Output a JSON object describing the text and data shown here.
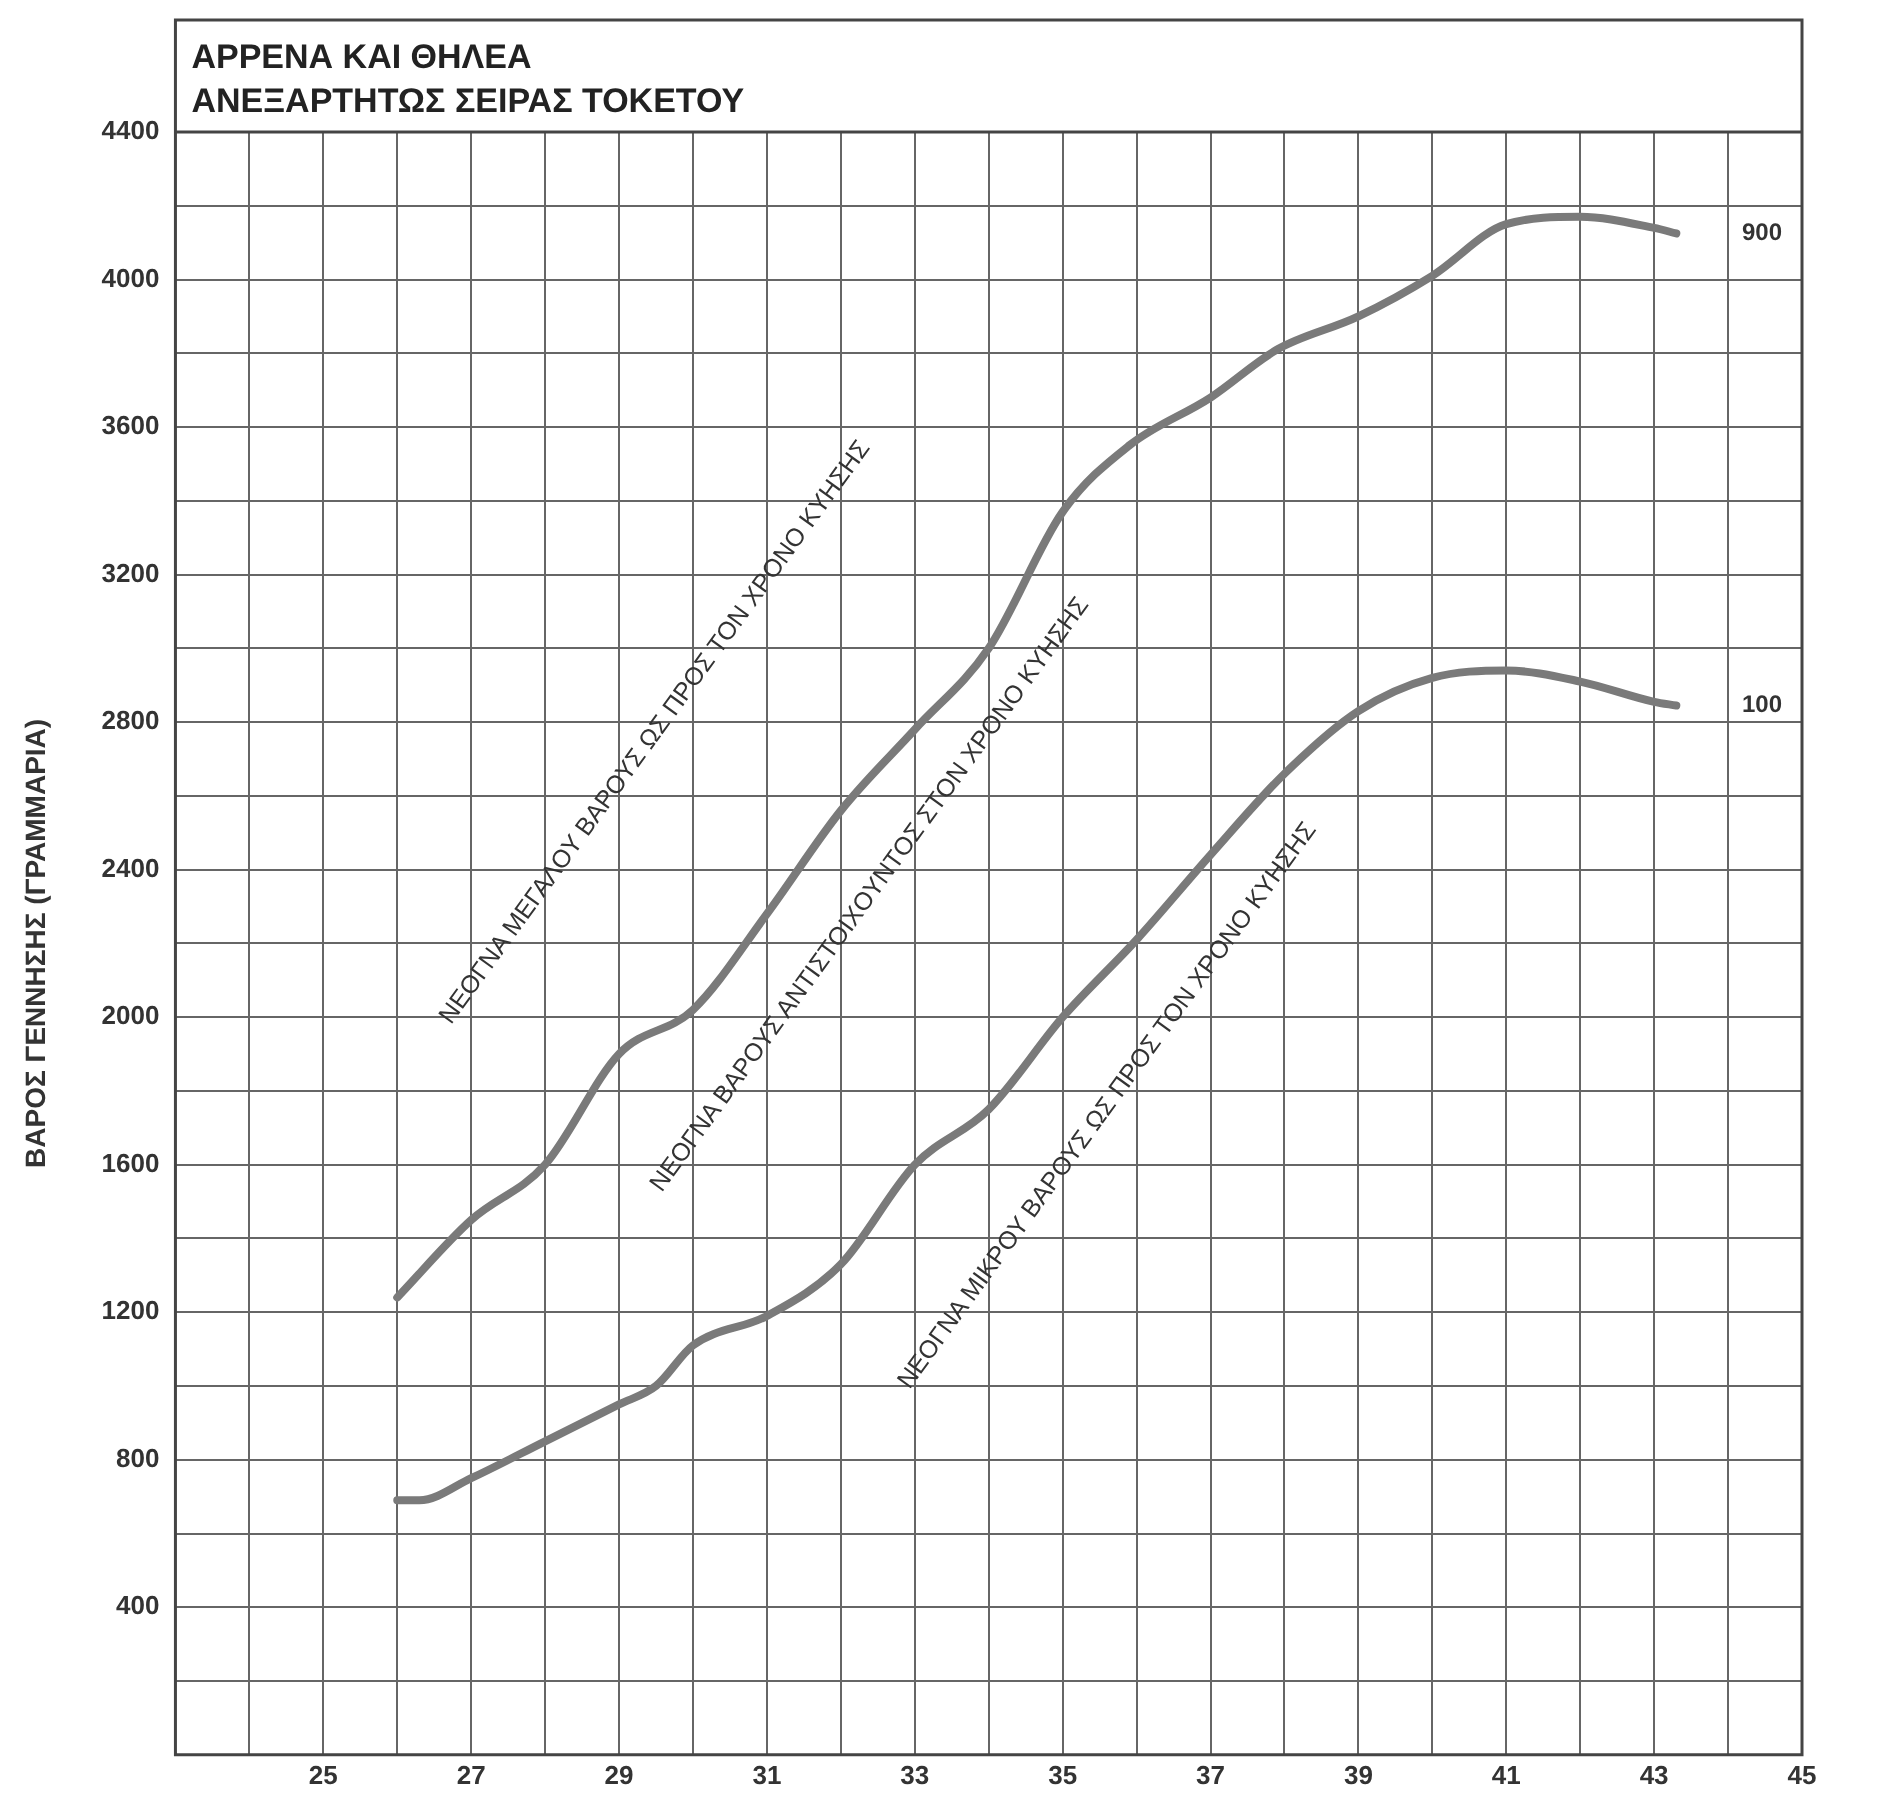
{
  "chart_data": {
    "type": "line",
    "title": "ΑΡΡΕΝΑ ΚΑΙ ΘΗΛΕΑ",
    "subtitle": "ΑΝΕΞΑΡΤΗΤΩΣ ΣΕΙΡΑΣ ΤΟΚΕΤΟΥ",
    "ylabel": "ΒΑΡΟΣ ΓΕΝΝΗΣΗΣ (ΓΡΑΜΜΑΡΙΑ)",
    "series": [
      {
        "name": "900",
        "color": "#7a7a7a",
        "x": [
          26,
          27,
          28,
          29,
          30,
          31,
          32,
          33,
          34,
          35,
          35.9,
          37,
          37.9,
          39,
          40,
          41,
          42,
          43,
          43.3
        ],
        "values": [
          1240,
          1450,
          1600,
          1900,
          2020,
          2280,
          2560,
          2780,
          3000,
          3370,
          3550,
          3680,
          3810,
          3900,
          4010,
          4150,
          4170,
          4140,
          4125
        ]
      },
      {
        "name": "100",
        "color": "#7a7a7a",
        "x": [
          26,
          26.3,
          27,
          28,
          29,
          29.5,
          30,
          31,
          32,
          33,
          34,
          35,
          36,
          37,
          38,
          39,
          40,
          41,
          42,
          43,
          43.3
        ],
        "values": [
          690,
          690,
          750,
          850,
          950,
          1000,
          1110,
          1190,
          1330,
          1600,
          1750,
          2000,
          2210,
          2440,
          2660,
          2830,
          2920,
          2940,
          2910,
          2855,
          2845
        ]
      }
    ],
    "xlim": [
      23,
      45
    ],
    "xticks": [
      {
        "value": 23,
        "label": null
      },
      {
        "value": 24,
        "label": null
      },
      25,
      {
        "value": 26,
        "label": null
      },
      27,
      {
        "value": 28,
        "label": null
      },
      29,
      {
        "value": 30,
        "label": null
      },
      31,
      {
        "value": 32,
        "label": null
      },
      33,
      {
        "value": 34,
        "label": null
      },
      35,
      {
        "value": 36,
        "label": null
      },
      37,
      {
        "value": 38,
        "label": null
      },
      39,
      {
        "value": 40,
        "label": null
      },
      41,
      {
        "value": 42,
        "label": null
      },
      43,
      {
        "value": 44,
        "label": null
      },
      45
    ],
    "ylim": [
      0,
      4400
    ],
    "yticks": [
      {
        "value": 0,
        "label": null
      },
      {
        "value": 200,
        "label": null
      },
      400,
      {
        "value": 600,
        "label": null
      },
      800,
      {
        "value": 1000,
        "label": null
      },
      1200,
      {
        "value": 1400,
        "label": null
      },
      1600,
      {
        "value": 1800,
        "label": null
      },
      2000,
      {
        "value": 2200,
        "label": null
      },
      2400,
      {
        "value": 2600,
        "label": null
      },
      2800,
      {
        "value": 3000,
        "label": null
      },
      3200,
      {
        "value": 3400,
        "label": null
      },
      3600,
      {
        "value": 3800,
        "label": null
      },
      4000,
      {
        "value": 4200,
        "label": null
      },
      4400
    ],
    "annotations": [
      "ΝΕΟΓΝΑ ΜΕΓΑΛΟΥ ΒΑΡΟΥΣ ΩΣ ΠΡΟΣ ΤΟΝ ΧΡΟΝΟ ΚΥΗΣΗΣ",
      "ΝΕΟΓΝΑ ΒΑΡΟΥΣ ΑΝΤΙΣΤΟΙΧΟΥΝΤΟΣ ΣΤΟΝ ΧΡΟΝΟ ΚΥΗΣΗΣ",
      "ΝΕΟΓΝΑ ΜΙΚΡΟΥ ΒΑΡΟΥΣ ΩΣ ΠΡΟΣ ΤΟΝ ΧΡΟΝΟ ΚΥΗΣΗΣ"
    ],
    "grid": true,
    "marker": "none",
    "line_style": "solid"
  }
}
